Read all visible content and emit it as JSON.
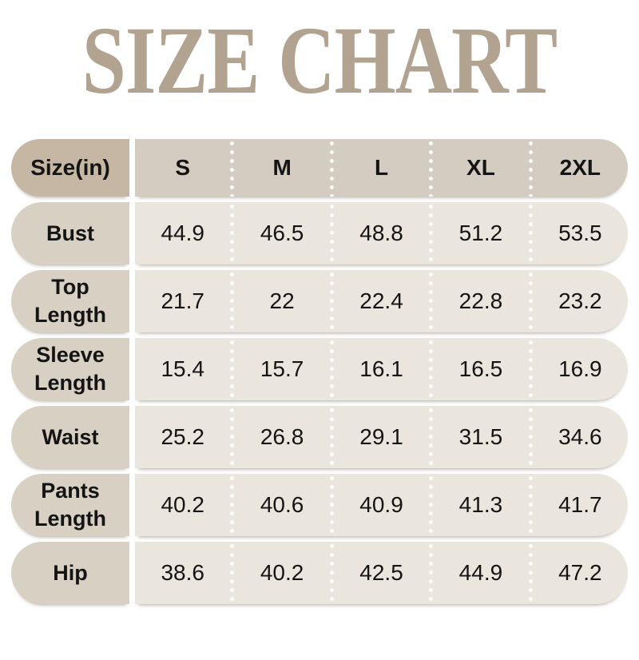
{
  "title": "SIZE CHART",
  "colors": {
    "title_color": "#b2a391",
    "header_corner_bg": "#c6b7a4",
    "header_row_bg": "#d4ccc0",
    "row_label_bg": "#d8d0c3",
    "row_value_bg": "#ebe6dd",
    "text_color": "#141414",
    "divider_dot": "#ffffff"
  },
  "table": {
    "corner_header": "Size(in)",
    "size_columns": [
      "S",
      "M",
      "L",
      "XL",
      "2XL"
    ],
    "rows": [
      {
        "label": "Bust",
        "values": [
          "44.9",
          "46.5",
          "48.8",
          "51.2",
          "53.5"
        ]
      },
      {
        "label": "Top Length",
        "values": [
          "21.7",
          "22",
          "22.4",
          "22.8",
          "23.2"
        ]
      },
      {
        "label": "Sleeve Length",
        "values": [
          "15.4",
          "15.7",
          "16.1",
          "16.5",
          "16.9"
        ]
      },
      {
        "label": "Waist",
        "values": [
          "25.2",
          "26.8",
          "29.1",
          "31.5",
          "34.6"
        ]
      },
      {
        "label": "Pants Length",
        "values": [
          "40.2",
          "40.6",
          "40.9",
          "41.3",
          "41.7"
        ]
      },
      {
        "label": "Hip",
        "values": [
          "38.6",
          "40.2",
          "42.5",
          "44.9",
          "47.2"
        ]
      }
    ]
  },
  "chart_data": {
    "type": "table",
    "title": "SIZE CHART",
    "unit": "in",
    "columns": [
      "Size(in)",
      "S",
      "M",
      "L",
      "XL",
      "2XL"
    ],
    "rows": [
      [
        "Bust",
        44.9,
        46.5,
        48.8,
        51.2,
        53.5
      ],
      [
        "Top Length",
        21.7,
        22,
        22.4,
        22.8,
        23.2
      ],
      [
        "Sleeve Length",
        15.4,
        15.7,
        16.1,
        16.5,
        16.9
      ],
      [
        "Waist",
        25.2,
        26.8,
        29.1,
        31.5,
        34.6
      ],
      [
        "Pants Length",
        40.2,
        40.6,
        40.9,
        41.3,
        41.7
      ],
      [
        "Hip",
        38.6,
        40.2,
        42.5,
        44.9,
        47.2
      ]
    ]
  }
}
